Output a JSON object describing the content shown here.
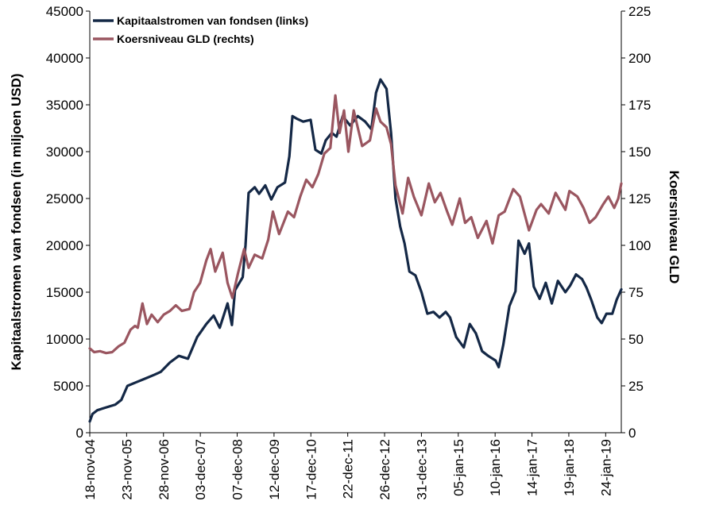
{
  "chart_data": {
    "type": "line",
    "ylabel": "Kapitaalstromen van fondsen (in miljoen USD)",
    "y2label": "Koersniveau GLD",
    "ylim": [
      0,
      45000
    ],
    "y2lim": [
      0,
      225
    ],
    "yticks": [
      0,
      5000,
      10000,
      15000,
      20000,
      25000,
      30000,
      35000,
      40000,
      45000
    ],
    "y2ticks": [
      0,
      25,
      50,
      75,
      100,
      125,
      150,
      175,
      200,
      225
    ],
    "xlim": [
      "2004-11-18",
      "2019-06-30"
    ],
    "x_ticks": [
      {
        "date": "2004-11-18",
        "label": "18-nov-04"
      },
      {
        "date": "2005-11-23",
        "label": "23-nov-05"
      },
      {
        "date": "2006-11-28",
        "label": "28-nov-06"
      },
      {
        "date": "2007-12-03",
        "label": "03-dec-07"
      },
      {
        "date": "2008-12-07",
        "label": "07-dec-08"
      },
      {
        "date": "2009-12-12",
        "label": "12-dec-09"
      },
      {
        "date": "2010-12-17",
        "label": "17-dec-10"
      },
      {
        "date": "2011-12-22",
        "label": "22-dec-11"
      },
      {
        "date": "2012-12-26",
        "label": "26-dec-12"
      },
      {
        "date": "2013-12-31",
        "label": "31-dec-13"
      },
      {
        "date": "2015-01-05",
        "label": "05-jan-15"
      },
      {
        "date": "2016-01-10",
        "label": "10-jan-16"
      },
      {
        "date": "2017-01-14",
        "label": "14-jan-17"
      },
      {
        "date": "2018-01-19",
        "label": "19-jan-18"
      },
      {
        "date": "2019-01-24",
        "label": "24-jan-19"
      }
    ],
    "legend": "top-left",
    "grid": false,
    "series": [
      {
        "name": "Kapitaalstromen van fondsen (links)",
        "axis": "left",
        "color": "#142846",
        "points": [
          [
            "2004-11-18",
            1200
          ],
          [
            "2004-12-15",
            2000
          ],
          [
            "2005-02-01",
            2400
          ],
          [
            "2005-05-01",
            2700
          ],
          [
            "2005-08-01",
            3000
          ],
          [
            "2005-10-01",
            3500
          ],
          [
            "2005-12-01",
            5000
          ],
          [
            "2006-03-01",
            5400
          ],
          [
            "2006-06-01",
            5800
          ],
          [
            "2006-09-01",
            6200
          ],
          [
            "2006-11-01",
            6500
          ],
          [
            "2007-02-01",
            7500
          ],
          [
            "2007-05-01",
            8200
          ],
          [
            "2007-08-01",
            7900
          ],
          [
            "2007-11-01",
            10200
          ],
          [
            "2008-02-01",
            11600
          ],
          [
            "2008-04-15",
            12500
          ],
          [
            "2008-06-15",
            11200
          ],
          [
            "2008-09-01",
            13800
          ],
          [
            "2008-10-15",
            11500
          ],
          [
            "2008-11-15",
            15200
          ],
          [
            "2009-02-01",
            16600
          ],
          [
            "2009-03-01",
            20000
          ],
          [
            "2009-04-01",
            25600
          ],
          [
            "2009-06-01",
            26200
          ],
          [
            "2009-07-15",
            25500
          ],
          [
            "2009-09-15",
            26400
          ],
          [
            "2009-11-15",
            24900
          ],
          [
            "2010-01-15",
            26200
          ],
          [
            "2010-04-01",
            26700
          ],
          [
            "2010-05-15",
            29500
          ],
          [
            "2010-06-15",
            33800
          ],
          [
            "2010-08-01",
            33500
          ],
          [
            "2010-10-01",
            33200
          ],
          [
            "2010-12-15",
            33400
          ],
          [
            "2011-02-01",
            30200
          ],
          [
            "2011-04-01",
            29800
          ],
          [
            "2011-05-15",
            31200
          ],
          [
            "2011-07-15",
            32000
          ],
          [
            "2011-09-01",
            31600
          ],
          [
            "2011-11-01",
            33800
          ],
          [
            "2012-01-15",
            32800
          ],
          [
            "2012-04-01",
            33800
          ],
          [
            "2012-06-15",
            33200
          ],
          [
            "2012-08-15",
            32400
          ],
          [
            "2012-10-01",
            36300
          ],
          [
            "2012-11-15",
            37700
          ],
          [
            "2013-01-15",
            36700
          ],
          [
            "2013-03-01",
            32000
          ],
          [
            "2013-04-15",
            25000
          ],
          [
            "2013-06-01",
            22000
          ],
          [
            "2013-07-15",
            20200
          ],
          [
            "2013-09-01",
            17200
          ],
          [
            "2013-11-01",
            16800
          ],
          [
            "2014-01-01",
            15000
          ],
          [
            "2014-03-01",
            12700
          ],
          [
            "2014-05-01",
            12900
          ],
          [
            "2014-07-01",
            12300
          ],
          [
            "2014-09-01",
            12900
          ],
          [
            "2014-10-15",
            12300
          ],
          [
            "2014-12-15",
            10200
          ],
          [
            "2015-03-01",
            9100
          ],
          [
            "2015-05-01",
            11600
          ],
          [
            "2015-07-01",
            10600
          ],
          [
            "2015-09-01",
            8700
          ],
          [
            "2015-11-01",
            8200
          ],
          [
            "2016-01-15",
            7700
          ],
          [
            "2016-02-15",
            7000
          ],
          [
            "2016-04-01",
            9400
          ],
          [
            "2016-06-01",
            13500
          ],
          [
            "2016-08-01",
            15100
          ],
          [
            "2016-09-01",
            20500
          ],
          [
            "2016-11-01",
            19100
          ],
          [
            "2016-12-15",
            20200
          ],
          [
            "2017-02-01",
            15600
          ],
          [
            "2017-04-01",
            14300
          ],
          [
            "2017-06-01",
            16000
          ],
          [
            "2017-08-01",
            13800
          ],
          [
            "2017-10-01",
            16200
          ],
          [
            "2017-12-15",
            15000
          ],
          [
            "2018-02-01",
            15700
          ],
          [
            "2018-04-01",
            16900
          ],
          [
            "2018-06-01",
            16400
          ],
          [
            "2018-07-15",
            15500
          ],
          [
            "2018-09-01",
            14200
          ],
          [
            "2018-11-01",
            12300
          ],
          [
            "2018-12-15",
            11700
          ],
          [
            "2019-02-01",
            12700
          ],
          [
            "2019-04-01",
            12700
          ],
          [
            "2019-05-15",
            14200
          ],
          [
            "2019-06-30",
            15300
          ]
        ]
      },
      {
        "name": "Koersniveau GLD (rechts)",
        "axis": "right",
        "color": "#9a5660",
        "points": [
          [
            "2004-11-18",
            45
          ],
          [
            "2005-01-01",
            43
          ],
          [
            "2005-03-01",
            43.5
          ],
          [
            "2005-05-01",
            42.5
          ],
          [
            "2005-07-01",
            43
          ],
          [
            "2005-09-01",
            46
          ],
          [
            "2005-11-01",
            48
          ],
          [
            "2006-01-01",
            55
          ],
          [
            "2006-02-15",
            57
          ],
          [
            "2006-03-15",
            56
          ],
          [
            "2006-05-01",
            69
          ],
          [
            "2006-06-15",
            58
          ],
          [
            "2006-08-01",
            63
          ],
          [
            "2006-10-01",
            59
          ],
          [
            "2006-12-01",
            63
          ],
          [
            "2007-02-01",
            65
          ],
          [
            "2007-04-01",
            68
          ],
          [
            "2007-06-01",
            65
          ],
          [
            "2007-08-15",
            66
          ],
          [
            "2007-10-01",
            75
          ],
          [
            "2007-12-01",
            80
          ],
          [
            "2008-02-01",
            92
          ],
          [
            "2008-03-15",
            98
          ],
          [
            "2008-05-01",
            86
          ],
          [
            "2008-07-15",
            96
          ],
          [
            "2008-09-01",
            80
          ],
          [
            "2008-10-20",
            72
          ],
          [
            "2008-12-15",
            85
          ],
          [
            "2009-02-15",
            98
          ],
          [
            "2009-04-01",
            88
          ],
          [
            "2009-06-01",
            95
          ],
          [
            "2009-08-15",
            93
          ],
          [
            "2009-10-15",
            103
          ],
          [
            "2009-12-01",
            118
          ],
          [
            "2010-02-01",
            106
          ],
          [
            "2010-05-01",
            118
          ],
          [
            "2010-07-01",
            115
          ],
          [
            "2010-09-01",
            126
          ],
          [
            "2010-11-01",
            135
          ],
          [
            "2011-01-01",
            131
          ],
          [
            "2011-03-01",
            138
          ],
          [
            "2011-05-01",
            149
          ],
          [
            "2011-07-01",
            152
          ],
          [
            "2011-08-20",
            180
          ],
          [
            "2011-10-01",
            160
          ],
          [
            "2011-11-15",
            172
          ],
          [
            "2011-12-29",
            150
          ],
          [
            "2012-02-20",
            172
          ],
          [
            "2012-05-15",
            153
          ],
          [
            "2012-08-01",
            156
          ],
          [
            "2012-10-01",
            173
          ],
          [
            "2012-11-15",
            166
          ],
          [
            "2013-01-15",
            163
          ],
          [
            "2013-03-01",
            154
          ],
          [
            "2013-04-15",
            132
          ],
          [
            "2013-06-25",
            117
          ],
          [
            "2013-08-20",
            136
          ],
          [
            "2013-10-15",
            126
          ],
          [
            "2013-12-31",
            116
          ],
          [
            "2014-03-15",
            133
          ],
          [
            "2014-05-15",
            123
          ],
          [
            "2014-07-10",
            128
          ],
          [
            "2014-09-15",
            118
          ],
          [
            "2014-11-05",
            111
          ],
          [
            "2015-01-20",
            125
          ],
          [
            "2015-03-15",
            112
          ],
          [
            "2015-05-15",
            115
          ],
          [
            "2015-07-20",
            104
          ],
          [
            "2015-10-15",
            113
          ],
          [
            "2015-12-15",
            101
          ],
          [
            "2016-02-15",
            116
          ],
          [
            "2016-04-15",
            118
          ],
          [
            "2016-07-10",
            130
          ],
          [
            "2016-09-15",
            126
          ],
          [
            "2016-12-15",
            108
          ],
          [
            "2017-03-01",
            119
          ],
          [
            "2017-04-15",
            122
          ],
          [
            "2017-07-01",
            117
          ],
          [
            "2017-09-08",
            128
          ],
          [
            "2017-12-15",
            119
          ],
          [
            "2018-01-25",
            129
          ],
          [
            "2018-04-15",
            126
          ],
          [
            "2018-06-15",
            120
          ],
          [
            "2018-08-15",
            112
          ],
          [
            "2018-10-15",
            115
          ],
          [
            "2018-12-31",
            122
          ],
          [
            "2019-02-20",
            126
          ],
          [
            "2019-04-20",
            120
          ],
          [
            "2019-05-31",
            125
          ],
          [
            "2019-06-30",
            133
          ]
        ]
      }
    ]
  }
}
